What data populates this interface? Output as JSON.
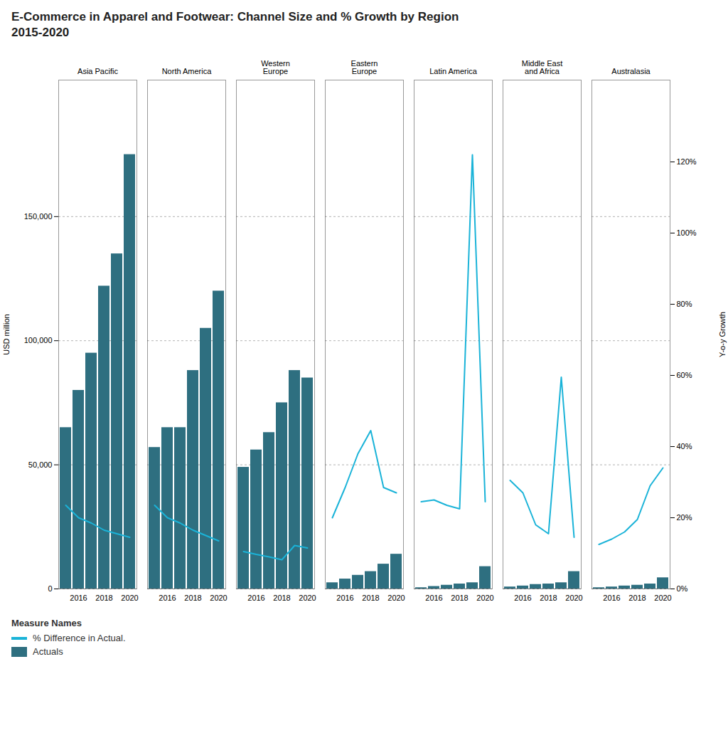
{
  "chart_data": {
    "type": "bar",
    "title": "E-Commerce in Apparel and Footwear: Channel Size and % Growth by Region",
    "subtitle": "2015-2020",
    "groups": [
      "Asia Pacific",
      "North America",
      "Western\nEurope",
      "Eastern\nEurope",
      "Latin America",
      "Middle East\nand Africa",
      "Australasia"
    ],
    "categories": [
      null,
      "2016",
      null,
      "2018",
      null,
      "2020"
    ],
    "series": [
      {
        "name": "% Difference in Actual.",
        "type": "line",
        "axis": "y2",
        "color": "#1ab3d8",
        "values": [
          [
            0.235,
            0.2,
            0.185,
            0.165,
            0.155,
            0.145
          ],
          [
            0.235,
            0.2,
            0.185,
            0.165,
            0.15,
            0.135
          ],
          [
            0.105,
            0.097,
            0.09,
            0.082,
            0.122,
            0.115
          ],
          [
            0.2,
            0.285,
            0.38,
            0.445,
            0.285,
            0.27
          ],
          [
            0.245,
            0.25,
            0.235,
            0.225,
            1.22,
            0.245
          ],
          [
            0.305,
            0.27,
            0.18,
            0.155,
            0.595,
            0.145
          ],
          [
            0.125,
            0.14,
            0.16,
            0.195,
            0.29,
            0.34
          ]
        ]
      },
      {
        "name": "Actuals",
        "type": "bar",
        "color": "#2e6f80",
        "values": [
          [
            65000,
            80000,
            95000,
            122000,
            135000,
            175000
          ],
          [
            57000,
            65000,
            65000,
            88000,
            105000,
            120000
          ],
          [
            49000,
            56000,
            63000,
            75000,
            88000,
            85000
          ],
          [
            2500,
            4000,
            5500,
            7000,
            10000,
            14000
          ],
          [
            500,
            1000,
            1500,
            2000,
            2500,
            9000
          ],
          [
            800,
            1200,
            1800,
            2000,
            2500,
            7000
          ],
          [
            500,
            800,
            1200,
            1500,
            2000,
            4500
          ]
        ]
      }
    ],
    "ylabel": "USD million",
    "y2label": "Y-o-y Growth",
    "ylim": [
      0,
      205000
    ],
    "yticks": [
      0,
      {
        "value": 50000,
        "label": "50,000"
      },
      {
        "value": 100000,
        "label": "100,000"
      },
      {
        "value": 150000,
        "label": "150,000"
      }
    ],
    "y2lim": [
      0,
      1.43
    ],
    "y2ticks": [
      {
        "value": 0.0,
        "label": "0%"
      },
      {
        "value": 0.2,
        "label": "20%"
      },
      {
        "value": 0.4,
        "label": "40%"
      },
      {
        "value": 0.6,
        "label": "60%"
      },
      {
        "value": 0.8,
        "label": "80%"
      },
      {
        "value": 1.0,
        "label": "100%"
      },
      {
        "value": 1.2,
        "label": "120%"
      }
    ],
    "grid": true,
    "legend_title": "Measure Names"
  }
}
